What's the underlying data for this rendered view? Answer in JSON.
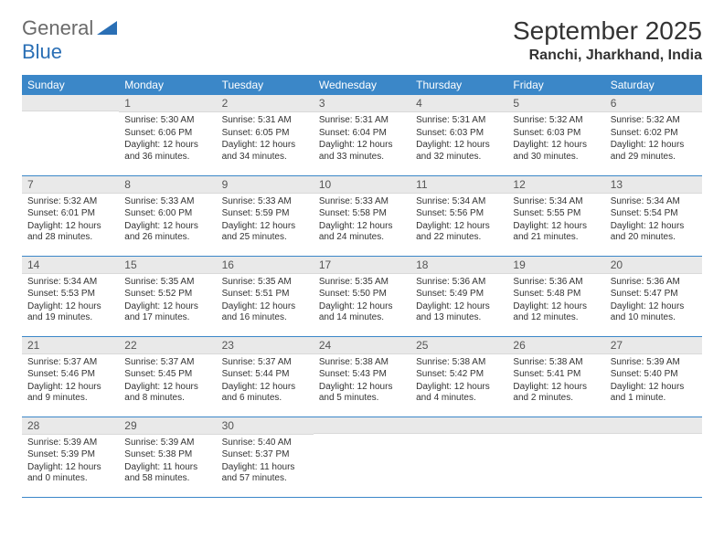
{
  "logo": {
    "text1": "General",
    "text2": "Blue"
  },
  "title": "September 2025",
  "subtitle": "Ranchi, Jharkhand, India",
  "colors": {
    "header_bg": "#3b87c8",
    "header_fg": "#ffffff",
    "daynum_bg": "#e9e9e9",
    "border": "#3b87c8",
    "logo_gray": "#6a6a6a",
    "logo_blue": "#2a6fb5"
  },
  "weekdays": [
    "Sunday",
    "Monday",
    "Tuesday",
    "Wednesday",
    "Thursday",
    "Friday",
    "Saturday"
  ],
  "weeks": [
    [
      null,
      {
        "n": "1",
        "sr": "Sunrise: 5:30 AM",
        "ss": "Sunset: 6:06 PM",
        "dl": "Daylight: 12 hours and 36 minutes."
      },
      {
        "n": "2",
        "sr": "Sunrise: 5:31 AM",
        "ss": "Sunset: 6:05 PM",
        "dl": "Daylight: 12 hours and 34 minutes."
      },
      {
        "n": "3",
        "sr": "Sunrise: 5:31 AM",
        "ss": "Sunset: 6:04 PM",
        "dl": "Daylight: 12 hours and 33 minutes."
      },
      {
        "n": "4",
        "sr": "Sunrise: 5:31 AM",
        "ss": "Sunset: 6:03 PM",
        "dl": "Daylight: 12 hours and 32 minutes."
      },
      {
        "n": "5",
        "sr": "Sunrise: 5:32 AM",
        "ss": "Sunset: 6:03 PM",
        "dl": "Daylight: 12 hours and 30 minutes."
      },
      {
        "n": "6",
        "sr": "Sunrise: 5:32 AM",
        "ss": "Sunset: 6:02 PM",
        "dl": "Daylight: 12 hours and 29 minutes."
      }
    ],
    [
      {
        "n": "7",
        "sr": "Sunrise: 5:32 AM",
        "ss": "Sunset: 6:01 PM",
        "dl": "Daylight: 12 hours and 28 minutes."
      },
      {
        "n": "8",
        "sr": "Sunrise: 5:33 AM",
        "ss": "Sunset: 6:00 PM",
        "dl": "Daylight: 12 hours and 26 minutes."
      },
      {
        "n": "9",
        "sr": "Sunrise: 5:33 AM",
        "ss": "Sunset: 5:59 PM",
        "dl": "Daylight: 12 hours and 25 minutes."
      },
      {
        "n": "10",
        "sr": "Sunrise: 5:33 AM",
        "ss": "Sunset: 5:58 PM",
        "dl": "Daylight: 12 hours and 24 minutes."
      },
      {
        "n": "11",
        "sr": "Sunrise: 5:34 AM",
        "ss": "Sunset: 5:56 PM",
        "dl": "Daylight: 12 hours and 22 minutes."
      },
      {
        "n": "12",
        "sr": "Sunrise: 5:34 AM",
        "ss": "Sunset: 5:55 PM",
        "dl": "Daylight: 12 hours and 21 minutes."
      },
      {
        "n": "13",
        "sr": "Sunrise: 5:34 AM",
        "ss": "Sunset: 5:54 PM",
        "dl": "Daylight: 12 hours and 20 minutes."
      }
    ],
    [
      {
        "n": "14",
        "sr": "Sunrise: 5:34 AM",
        "ss": "Sunset: 5:53 PM",
        "dl": "Daylight: 12 hours and 19 minutes."
      },
      {
        "n": "15",
        "sr": "Sunrise: 5:35 AM",
        "ss": "Sunset: 5:52 PM",
        "dl": "Daylight: 12 hours and 17 minutes."
      },
      {
        "n": "16",
        "sr": "Sunrise: 5:35 AM",
        "ss": "Sunset: 5:51 PM",
        "dl": "Daylight: 12 hours and 16 minutes."
      },
      {
        "n": "17",
        "sr": "Sunrise: 5:35 AM",
        "ss": "Sunset: 5:50 PM",
        "dl": "Daylight: 12 hours and 14 minutes."
      },
      {
        "n": "18",
        "sr": "Sunrise: 5:36 AM",
        "ss": "Sunset: 5:49 PM",
        "dl": "Daylight: 12 hours and 13 minutes."
      },
      {
        "n": "19",
        "sr": "Sunrise: 5:36 AM",
        "ss": "Sunset: 5:48 PM",
        "dl": "Daylight: 12 hours and 12 minutes."
      },
      {
        "n": "20",
        "sr": "Sunrise: 5:36 AM",
        "ss": "Sunset: 5:47 PM",
        "dl": "Daylight: 12 hours and 10 minutes."
      }
    ],
    [
      {
        "n": "21",
        "sr": "Sunrise: 5:37 AM",
        "ss": "Sunset: 5:46 PM",
        "dl": "Daylight: 12 hours and 9 minutes."
      },
      {
        "n": "22",
        "sr": "Sunrise: 5:37 AM",
        "ss": "Sunset: 5:45 PM",
        "dl": "Daylight: 12 hours and 8 minutes."
      },
      {
        "n": "23",
        "sr": "Sunrise: 5:37 AM",
        "ss": "Sunset: 5:44 PM",
        "dl": "Daylight: 12 hours and 6 minutes."
      },
      {
        "n": "24",
        "sr": "Sunrise: 5:38 AM",
        "ss": "Sunset: 5:43 PM",
        "dl": "Daylight: 12 hours and 5 minutes."
      },
      {
        "n": "25",
        "sr": "Sunrise: 5:38 AM",
        "ss": "Sunset: 5:42 PM",
        "dl": "Daylight: 12 hours and 4 minutes."
      },
      {
        "n": "26",
        "sr": "Sunrise: 5:38 AM",
        "ss": "Sunset: 5:41 PM",
        "dl": "Daylight: 12 hours and 2 minutes."
      },
      {
        "n": "27",
        "sr": "Sunrise: 5:39 AM",
        "ss": "Sunset: 5:40 PM",
        "dl": "Daylight: 12 hours and 1 minute."
      }
    ],
    [
      {
        "n": "28",
        "sr": "Sunrise: 5:39 AM",
        "ss": "Sunset: 5:39 PM",
        "dl": "Daylight: 12 hours and 0 minutes."
      },
      {
        "n": "29",
        "sr": "Sunrise: 5:39 AM",
        "ss": "Sunset: 5:38 PM",
        "dl": "Daylight: 11 hours and 58 minutes."
      },
      {
        "n": "30",
        "sr": "Sunrise: 5:40 AM",
        "ss": "Sunset: 5:37 PM",
        "dl": "Daylight: 11 hours and 57 minutes."
      },
      null,
      null,
      null,
      null
    ]
  ]
}
